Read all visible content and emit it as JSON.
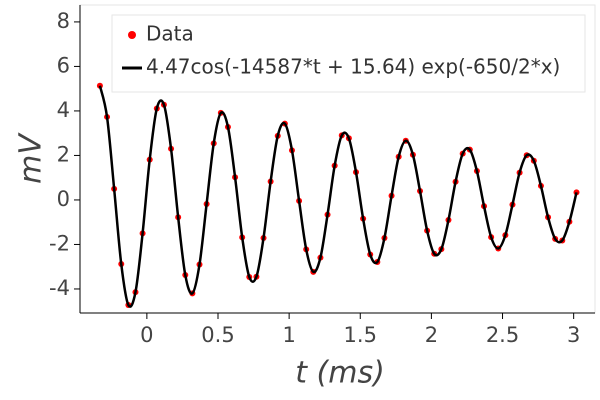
{
  "chart_data": {
    "type": "line",
    "xlabel": "t (ms)",
    "ylabel": "mV",
    "x": [
      -0.33,
      -0.28,
      -0.23,
      -0.18,
      -0.13,
      -0.08,
      -0.03,
      0.02,
      0.07,
      0.12,
      0.17,
      0.22,
      0.27,
      0.32,
      0.37,
      0.42,
      0.47,
      0.52,
      0.57,
      0.62,
      0.67,
      0.72,
      0.77,
      0.82,
      0.87,
      0.92,
      0.97,
      1.02,
      1.07,
      1.12,
      1.17,
      1.22,
      1.27,
      1.32,
      1.37,
      1.42,
      1.47,
      1.52,
      1.57,
      1.62,
      1.67,
      1.72,
      1.77,
      1.82,
      1.87,
      1.92,
      1.97,
      2.02,
      2.07,
      2.12,
      2.17,
      2.22,
      2.27,
      2.32,
      2.37,
      2.42,
      2.47,
      2.52,
      2.57,
      2.62,
      2.67,
      2.72,
      2.77,
      2.82,
      2.87,
      2.92,
      2.97,
      3.02
    ],
    "series": [
      {
        "name": "Data",
        "color": "#ff0000",
        "mode": "markers",
        "values": [
          5.13,
          3.73,
          0.5,
          -2.88,
          -4.72,
          -4.14,
          -1.5,
          1.81,
          4.11,
          4.28,
          2.3,
          -0.78,
          -3.37,
          -4.2,
          -2.9,
          -0.18,
          2.54,
          3.91,
          3.28,
          1.02,
          -1.68,
          -3.46,
          -3.45,
          -1.71,
          0.83,
          2.88,
          3.43,
          2.23,
          -0.04,
          -2.22,
          -3.23,
          -2.59,
          -0.66,
          1.54,
          2.9,
          2.77,
          1.25,
          -0.84,
          -2.45,
          -2.79,
          -1.71,
          0.19,
          1.94,
          2.66,
          2.03,
          0.4,
          -1.38,
          -2.42,
          -2.21,
          -0.9,
          0.82,
          2.08,
          2.26,
          1.3,
          -0.28,
          -1.67,
          -2.18,
          -1.58,
          -0.21,
          1.23,
          2.01,
          1.76,
          0.63,
          -0.78,
          -1.75,
          -1.82,
          -0.98,
          0.34
        ]
      },
      {
        "name": "4.47cos(-14587*t + 15.64) exp(-650/2*x)",
        "color": "#000000",
        "mode": "line",
        "values": [
          5.13,
          3.73,
          0.5,
          -2.88,
          -4.72,
          -4.14,
          -1.5,
          1.81,
          4.11,
          4.28,
          2.3,
          -0.78,
          -3.37,
          -4.2,
          -2.9,
          -0.18,
          2.54,
          3.91,
          3.28,
          1.02,
          -1.68,
          -3.46,
          -3.45,
          -1.71,
          0.83,
          2.88,
          3.43,
          2.23,
          -0.04,
          -2.22,
          -3.23,
          -2.59,
          -0.66,
          1.54,
          2.9,
          2.77,
          1.25,
          -0.84,
          -2.45,
          -2.79,
          -1.71,
          0.19,
          1.94,
          2.66,
          2.03,
          0.4,
          -1.38,
          -2.42,
          -2.21,
          -0.9,
          0.82,
          2.08,
          2.26,
          1.3,
          -0.28,
          -1.67,
          -2.18,
          -1.58,
          -0.21,
          1.23,
          2.01,
          1.76,
          0.63,
          -0.78,
          -1.75,
          -1.82,
          -0.98,
          0.34
        ]
      }
    ],
    "xlim": [
      -0.47,
      3.15
    ],
    "ylim": [
      -5.08,
      8.76
    ],
    "xticks": [
      0,
      0.5,
      1,
      1.5,
      2,
      2.5,
      3
    ],
    "yticks": [
      -4,
      -2,
      0,
      2,
      4,
      6,
      8
    ],
    "legend": "upper right"
  }
}
